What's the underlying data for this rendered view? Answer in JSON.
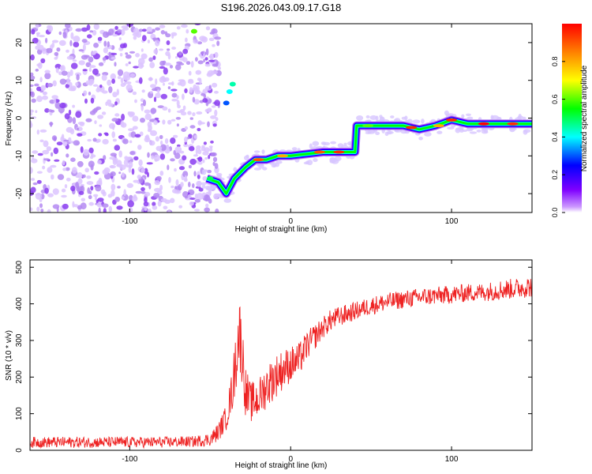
{
  "title": "S196.2026.043.09.17.G18",
  "chart_data": [
    {
      "type": "heatmap",
      "xlabel": "Height of straight line (km)",
      "ylabel": "Frequency (Hz)",
      "xlim": [
        -162,
        150
      ],
      "ylim": [
        -25,
        25
      ],
      "xticks": [
        -100,
        0,
        100
      ],
      "yticks": [
        20,
        10,
        0,
        -10,
        -20
      ],
      "xtick_labels": [
        "-100",
        "0",
        "100"
      ],
      "ytick_labels": [
        "20",
        "10",
        "0",
        "-10",
        "-20"
      ],
      "grid": false,
      "colorbar": {
        "label": "Normalized spectral amplitude",
        "range": [
          0,
          1
        ],
        "ticks": [
          0.0,
          0.2,
          0.4,
          0.6,
          0.8
        ],
        "tick_labels": [
          "0.0",
          "0.2",
          "0.4",
          "0.6",
          "0.8"
        ],
        "colors": [
          "#ffffff",
          "#cc99ff",
          "#7f00ff",
          "#0000ff",
          "#00ffff",
          "#00ff00",
          "#ffff00",
          "#ff8000",
          "#ff0000"
        ]
      },
      "noise_region": {
        "x_range": [
          -162,
          -52
        ],
        "f_range": [
          -25,
          25
        ],
        "amplitude": 0.1
      },
      "ridge": [
        {
          "x": -52,
          "f": -16
        },
        {
          "x": -45,
          "f": -17
        },
        {
          "x": -40,
          "f": -20
        },
        {
          "x": -35,
          "f": -16
        },
        {
          "x": -28,
          "f": -13
        },
        {
          "x": -22,
          "f": -11
        },
        {
          "x": -15,
          "f": -11
        },
        {
          "x": -8,
          "f": -10
        },
        {
          "x": 0,
          "f": -10
        },
        {
          "x": 10,
          "f": -9.5
        },
        {
          "x": 20,
          "f": -9
        },
        {
          "x": 30,
          "f": -9
        },
        {
          "x": 40,
          "f": -9
        },
        {
          "x": 41,
          "f": -2
        },
        {
          "x": 55,
          "f": -2
        },
        {
          "x": 70,
          "f": -2
        },
        {
          "x": 80,
          "f": -3
        },
        {
          "x": 90,
          "f": -2
        },
        {
          "x": 100,
          "f": -0.5
        },
        {
          "x": 110,
          "f": -1.5
        },
        {
          "x": 130,
          "f": -1.5
        },
        {
          "x": 150,
          "f": -1.5
        }
      ]
    },
    {
      "type": "line",
      "xlabel": "Height of straight line (km)",
      "ylabel": "SNR (10 * v/v)",
      "xlim": [
        -162,
        150
      ],
      "ylim": [
        0,
        520
      ],
      "xticks": [
        -100,
        0,
        100
      ],
      "yticks": [
        0,
        100,
        200,
        300,
        400,
        500
      ],
      "xtick_labels": [
        "-100",
        "0",
        "100"
      ],
      "ytick_labels": [
        "0",
        "100",
        "200",
        "300",
        "400",
        "500"
      ],
      "grid": false,
      "series": [
        {
          "name": "SNR",
          "color": "#ee2222",
          "x": [
            -162,
            -140,
            -120,
            -100,
            -80,
            -60,
            -50,
            -45,
            -40,
            -36,
            -34,
            -32,
            -30,
            -28,
            -25,
            -20,
            -15,
            -10,
            -5,
            0,
            5,
            10,
            15,
            20,
            25,
            30,
            40,
            50,
            60,
            70,
            80,
            90,
            100,
            110,
            120,
            130,
            140,
            150
          ],
          "y": [
            22,
            22,
            22,
            22,
            22,
            24,
            30,
            50,
            90,
            170,
            250,
            330,
            260,
            160,
            130,
            140,
            175,
            200,
            220,
            235,
            245,
            285,
            310,
            335,
            355,
            365,
            380,
            395,
            405,
            412,
            418,
            422,
            425,
            430,
            432,
            438,
            442,
            448
          ],
          "noise": [
            15,
            15,
            15,
            15,
            15,
            15,
            18,
            25,
            35,
            60,
            90,
            100,
            90,
            70,
            55,
            55,
            60,
            60,
            55,
            50,
            48,
            40,
            35,
            30,
            30,
            28,
            25,
            25,
            25,
            25,
            25,
            25,
            25,
            25,
            25,
            28,
            28,
            30
          ]
        }
      ]
    }
  ]
}
